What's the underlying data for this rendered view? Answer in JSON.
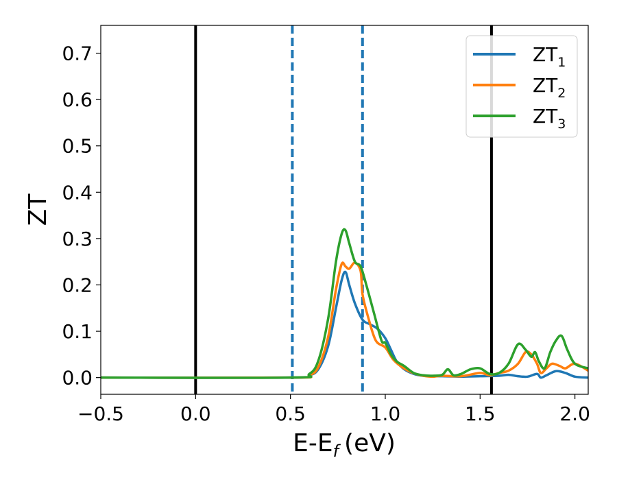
{
  "chart_data": {
    "type": "line",
    "xlabel": "E-E",
    "xlabel_sub": "f",
    "xlabel_unit": "(eV)",
    "ylabel": "ZT",
    "xlim": [
      -0.5,
      2.07
    ],
    "ylim": [
      -0.036,
      0.76
    ],
    "xticks": [
      -0.5,
      0.0,
      0.5,
      1.0,
      1.5,
      2.0
    ],
    "xtick_labels": [
      "−0.5",
      "0.0",
      "0.5",
      "1.0",
      "1.5",
      "2.0"
    ],
    "yticks": [
      0.0,
      0.1,
      0.2,
      0.3,
      0.4,
      0.5,
      0.6,
      0.7
    ],
    "ytick_labels": [
      "0.0",
      "0.1",
      "0.2",
      "0.3",
      "0.4",
      "0.5",
      "0.6",
      "0.7"
    ],
    "grid": false,
    "legend_position": "top-right",
    "vlines": [
      {
        "x": 0.0,
        "style": "solid",
        "color": "#000000"
      },
      {
        "x": 1.56,
        "style": "solid",
        "color": "#000000"
      },
      {
        "x": 0.51,
        "style": "dashed",
        "color": "#1f77b4"
      },
      {
        "x": 0.88,
        "style": "dashed",
        "color": "#1f77b4"
      }
    ],
    "series": [
      {
        "name": "ZT",
        "name_sub": "1",
        "color": "#1f77b4",
        "x": [
          -0.5,
          0.5,
          0.6,
          0.65,
          0.7,
          0.74,
          0.77,
          0.79,
          0.81,
          0.84,
          0.88,
          0.92,
          0.96,
          1.0,
          1.03,
          1.06,
          1.1,
          1.15,
          1.2,
          1.3,
          1.4,
          1.5,
          1.6,
          1.65,
          1.7,
          1.75,
          1.8,
          1.82,
          1.85,
          1.9,
          1.95,
          2.0,
          2.07
        ],
        "y": [
          0.0,
          0.0,
          0.005,
          0.02,
          0.07,
          0.15,
          0.21,
          0.228,
          0.2,
          0.16,
          0.125,
          0.115,
          0.105,
          0.085,
          0.06,
          0.035,
          0.018,
          0.008,
          0.004,
          0.003,
          0.002,
          0.003,
          0.004,
          0.006,
          0.003,
          0.002,
          0.008,
          0.0,
          0.005,
          0.014,
          0.01,
          0.002,
          0.0
        ]
      },
      {
        "name": "ZT",
        "name_sub": "2",
        "color": "#ff7f0e",
        "x": [
          -0.5,
          0.5,
          0.6,
          0.65,
          0.7,
          0.74,
          0.77,
          0.79,
          0.81,
          0.84,
          0.87,
          0.88,
          0.91,
          0.95,
          1.0,
          1.04,
          1.08,
          1.12,
          1.16,
          1.2,
          1.25,
          1.3,
          1.4,
          1.5,
          1.55,
          1.6,
          1.65,
          1.7,
          1.74,
          1.77,
          1.8,
          1.82,
          1.85,
          1.88,
          1.92,
          1.95,
          2.0,
          2.07
        ],
        "y": [
          0.0,
          0.0,
          0.005,
          0.025,
          0.09,
          0.19,
          0.245,
          0.24,
          0.235,
          0.248,
          0.23,
          0.18,
          0.13,
          0.08,
          0.065,
          0.04,
          0.025,
          0.015,
          0.008,
          0.004,
          0.002,
          0.004,
          0.003,
          0.01,
          0.005,
          0.01,
          0.015,
          0.03,
          0.055,
          0.05,
          0.03,
          0.01,
          0.02,
          0.03,
          0.025,
          0.02,
          0.03,
          0.015
        ]
      },
      {
        "name": "ZT",
        "name_sub": "3",
        "color": "#2ca02c",
        "x": [
          -0.5,
          0.5,
          0.6,
          0.65,
          0.7,
          0.74,
          0.77,
          0.79,
          0.81,
          0.84,
          0.87,
          0.9,
          0.94,
          0.98,
          1.0,
          1.03,
          1.06,
          1.1,
          1.15,
          1.2,
          1.25,
          1.3,
          1.33,
          1.36,
          1.4,
          1.45,
          1.5,
          1.55,
          1.6,
          1.65,
          1.7,
          1.74,
          1.77,
          1.79,
          1.81,
          1.84,
          1.87,
          1.9,
          1.93,
          1.96,
          2.0,
          2.07
        ],
        "y": [
          0.0,
          0.0,
          0.008,
          0.04,
          0.13,
          0.25,
          0.31,
          0.318,
          0.29,
          0.25,
          0.24,
          0.2,
          0.14,
          0.08,
          0.075,
          0.05,
          0.035,
          0.025,
          0.01,
          0.005,
          0.004,
          0.006,
          0.018,
          0.005,
          0.008,
          0.018,
          0.02,
          0.008,
          0.01,
          0.03,
          0.072,
          0.06,
          0.045,
          0.055,
          0.035,
          0.02,
          0.055,
          0.08,
          0.09,
          0.06,
          0.03,
          0.02
        ]
      }
    ]
  }
}
